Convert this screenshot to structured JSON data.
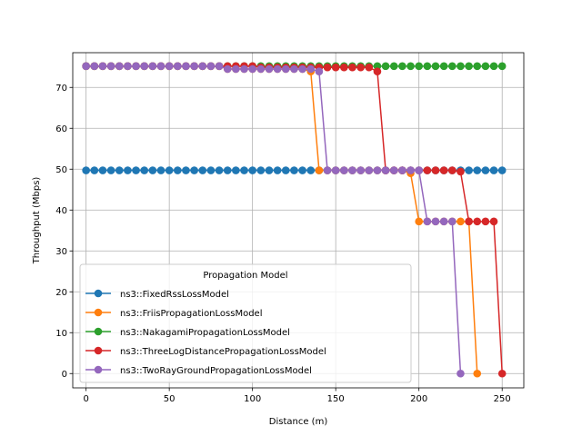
{
  "chart_data": {
    "type": "line",
    "title": "",
    "xlabel": "Distance (m)",
    "ylabel": "Throughput (Mbps)",
    "xlim": [
      -8,
      263
    ],
    "ylim": [
      -3.5,
      78.5
    ],
    "xticks": [
      0,
      50,
      100,
      150,
      200,
      250
    ],
    "yticks": [
      0,
      10,
      20,
      30,
      40,
      50,
      60,
      70
    ],
    "grid": true,
    "legend": {
      "title": "Propagation Model",
      "placement": "lower-left"
    },
    "series": [
      {
        "name": "ns3::FixedRssLossModel",
        "color": "#1f77b4",
        "x": [
          0,
          5,
          10,
          15,
          20,
          25,
          30,
          35,
          40,
          45,
          50,
          55,
          60,
          65,
          70,
          75,
          80,
          85,
          90,
          95,
          100,
          105,
          110,
          115,
          120,
          125,
          130,
          135,
          140,
          145,
          150,
          155,
          160,
          165,
          170,
          175,
          180,
          185,
          190,
          195,
          200,
          205,
          210,
          215,
          220,
          225,
          230,
          235,
          240,
          245,
          250
        ],
        "y": [
          49.7,
          49.7,
          49.7,
          49.7,
          49.7,
          49.7,
          49.7,
          49.7,
          49.7,
          49.7,
          49.7,
          49.7,
          49.7,
          49.7,
          49.7,
          49.7,
          49.7,
          49.7,
          49.7,
          49.7,
          49.7,
          49.7,
          49.7,
          49.7,
          49.7,
          49.7,
          49.7,
          49.7,
          49.7,
          49.7,
          49.7,
          49.7,
          49.7,
          49.7,
          49.7,
          49.7,
          49.7,
          49.7,
          49.7,
          49.7,
          49.7,
          49.7,
          49.7,
          49.7,
          49.7,
          49.7,
          49.7,
          49.7,
          49.7,
          49.7,
          49.7
        ]
      },
      {
        "name": "ns3::FriisPropagationLossModel",
        "color": "#ff7f0e",
        "x": [
          0,
          5,
          10,
          15,
          20,
          25,
          30,
          35,
          40,
          45,
          50,
          55,
          60,
          65,
          70,
          75,
          80,
          85,
          90,
          95,
          100,
          105,
          110,
          115,
          120,
          125,
          130,
          135,
          140,
          145,
          150,
          155,
          160,
          165,
          170,
          175,
          180,
          185,
          190,
          195,
          200,
          205,
          210,
          215,
          220,
          225,
          230,
          235
        ],
        "y": [
          75.2,
          75.2,
          75.2,
          75.2,
          75.2,
          75.2,
          75.2,
          75.2,
          75.2,
          75.2,
          75.2,
          75.2,
          75.2,
          75.2,
          75.2,
          75.2,
          75.2,
          74.5,
          74.5,
          74.5,
          74.5,
          74.5,
          74.5,
          74.5,
          74.5,
          74.5,
          74.5,
          73.9,
          49.7,
          49.7,
          49.7,
          49.7,
          49.7,
          49.7,
          49.7,
          49.7,
          49.7,
          49.7,
          49.7,
          49.0,
          37.2,
          37.2,
          37.2,
          37.2,
          37.2,
          37.2,
          37.2,
          0
        ]
      },
      {
        "name": "ns3::NakagamiPropagationLossModel",
        "color": "#2ca02c",
        "x": [
          0,
          5,
          10,
          15,
          20,
          25,
          30,
          35,
          40,
          45,
          50,
          55,
          60,
          65,
          70,
          75,
          80,
          85,
          90,
          95,
          100,
          105,
          110,
          115,
          120,
          125,
          130,
          135,
          140,
          145,
          150,
          155,
          160,
          165,
          170,
          175,
          180,
          185,
          190,
          195,
          200,
          205,
          210,
          215,
          220,
          225,
          230,
          235,
          240,
          245,
          250
        ],
        "y": [
          75.2,
          75.2,
          75.2,
          75.2,
          75.2,
          75.2,
          75.2,
          75.2,
          75.2,
          75.2,
          75.2,
          75.2,
          75.2,
          75.2,
          75.2,
          75.2,
          75.2,
          75.2,
          75.2,
          75.2,
          75.2,
          75.2,
          75.2,
          75.2,
          75.2,
          75.2,
          75.2,
          75.2,
          75.2,
          75.2,
          75.2,
          75.2,
          75.2,
          75.2,
          75.2,
          75.2,
          75.2,
          75.2,
          75.2,
          75.2,
          75.2,
          75.2,
          75.2,
          75.2,
          75.2,
          75.2,
          75.2,
          75.2,
          75.2,
          75.2,
          75.2
        ]
      },
      {
        "name": "ns3::ThreeLogDistancePropagationLossModel",
        "color": "#d62728",
        "x": [
          0,
          5,
          10,
          15,
          20,
          25,
          30,
          35,
          40,
          45,
          50,
          55,
          60,
          65,
          70,
          75,
          80,
          85,
          90,
          95,
          100,
          105,
          110,
          115,
          120,
          125,
          130,
          135,
          140,
          145,
          150,
          155,
          160,
          165,
          170,
          175,
          180,
          185,
          190,
          195,
          200,
          205,
          210,
          215,
          220,
          225,
          230,
          235,
          240,
          245,
          250
        ],
        "y": [
          75.2,
          75.2,
          75.2,
          75.2,
          75.2,
          75.2,
          75.2,
          75.2,
          75.2,
          75.2,
          75.2,
          75.2,
          75.2,
          75.2,
          75.2,
          75.2,
          75.2,
          75.2,
          75.2,
          75.2,
          75.2,
          74.9,
          74.9,
          74.9,
          74.9,
          74.9,
          74.9,
          74.9,
          74.9,
          74.9,
          74.9,
          74.9,
          74.9,
          74.9,
          74.9,
          73.9,
          49.7,
          49.7,
          49.7,
          49.7,
          49.7,
          49.7,
          49.7,
          49.7,
          49.7,
          49.4,
          37.2,
          37.2,
          37.2,
          37.2,
          0
        ]
      },
      {
        "name": "ns3::TwoRayGroundPropagationLossModel",
        "color": "#9467bd",
        "x": [
          0,
          5,
          10,
          15,
          20,
          25,
          30,
          35,
          40,
          45,
          50,
          55,
          60,
          65,
          70,
          75,
          80,
          85,
          90,
          95,
          100,
          105,
          110,
          115,
          120,
          125,
          130,
          135,
          140,
          145,
          150,
          155,
          160,
          165,
          170,
          175,
          180,
          185,
          190,
          195,
          200,
          205,
          210,
          215,
          220,
          225
        ],
        "y": [
          75.2,
          75.2,
          75.2,
          75.2,
          75.2,
          75.2,
          75.2,
          75.2,
          75.2,
          75.2,
          75.2,
          75.2,
          75.2,
          75.2,
          75.2,
          75.2,
          75.2,
          74.5,
          74.5,
          74.5,
          74.5,
          74.5,
          74.5,
          74.5,
          74.5,
          74.5,
          74.5,
          74.5,
          73.9,
          49.7,
          49.7,
          49.7,
          49.7,
          49.7,
          49.7,
          49.7,
          49.7,
          49.7,
          49.7,
          49.7,
          49.7,
          37.2,
          37.2,
          37.2,
          37.2,
          0
        ]
      }
    ]
  }
}
